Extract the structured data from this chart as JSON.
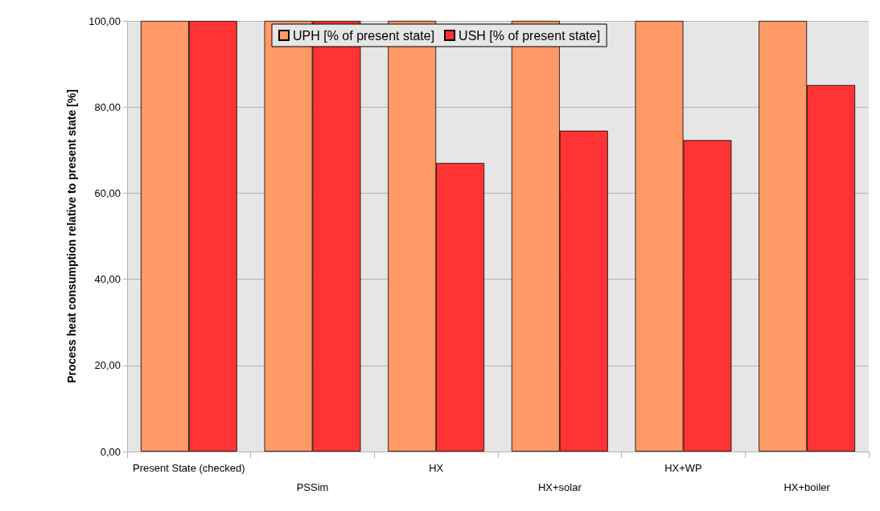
{
  "chart_data": {
    "type": "bar",
    "ylabel": "Process heat consumption relative to present state [%]",
    "categories": [
      "Present State (checked)",
      "PSSim",
      "HX",
      "HX+solar",
      "HX+WP",
      "HX+boiler"
    ],
    "series": [
      {
        "name": "UPH [% of present state]",
        "color": "#ff9966",
        "values": [
          100,
          100,
          100,
          100,
          100,
          100
        ]
      },
      {
        "name": "USH [% of present state]",
        "color": "#ff3333",
        "values": [
          100,
          100,
          67,
          74.5,
          72.3,
          85.1
        ]
      }
    ],
    "ylim": [
      0,
      100
    ],
    "yticks": [
      {
        "value": 0,
        "label": "0,00"
      },
      {
        "value": 20,
        "label": "20,00"
      },
      {
        "value": 40,
        "label": "40,00"
      },
      {
        "value": 60,
        "label": "60,00"
      },
      {
        "value": 80,
        "label": "80,00"
      },
      {
        "value": 100,
        "label": "100,00"
      }
    ],
    "grid": "y",
    "legend": "top"
  }
}
